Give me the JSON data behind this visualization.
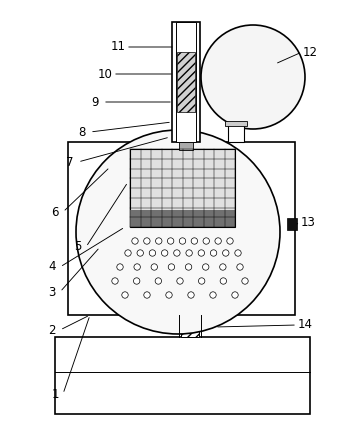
{
  "bg_color": "#ffffff",
  "line_color": "#000000",
  "figsize": [
    3.57,
    4.22
  ],
  "dpi": 100
}
